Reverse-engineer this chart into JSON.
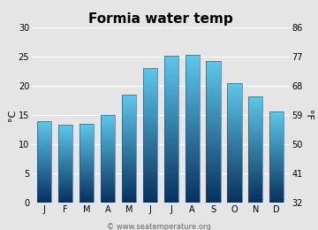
{
  "title": "Formia water temp",
  "months": [
    "J",
    "F",
    "M",
    "A",
    "M",
    "J",
    "J",
    "A",
    "S",
    "O",
    "N",
    "D"
  ],
  "values": [
    14.0,
    13.3,
    13.5,
    15.0,
    18.5,
    23.0,
    25.2,
    25.3,
    24.2,
    20.5,
    18.2,
    15.6
  ],
  "ylim_left": [
    0,
    30
  ],
  "yticks_left": [
    0,
    5,
    10,
    15,
    20,
    25,
    30
  ],
  "ylim_right": [
    32,
    86
  ],
  "yticks_right": [
    32,
    41,
    50,
    59,
    68,
    77,
    86
  ],
  "ylabel_left": "°C",
  "ylabel_right": "°F",
  "bar_color_top": "#5ec8ea",
  "bar_color_bottom": "#08305e",
  "bar_edge_color": "#1a5080",
  "background_color": "#e5e5e5",
  "grid_color": "#ffffff",
  "watermark": "© www.seatemperature.org",
  "title_fontsize": 11,
  "axis_fontsize": 7,
  "label_fontsize": 8,
  "watermark_fontsize": 6
}
